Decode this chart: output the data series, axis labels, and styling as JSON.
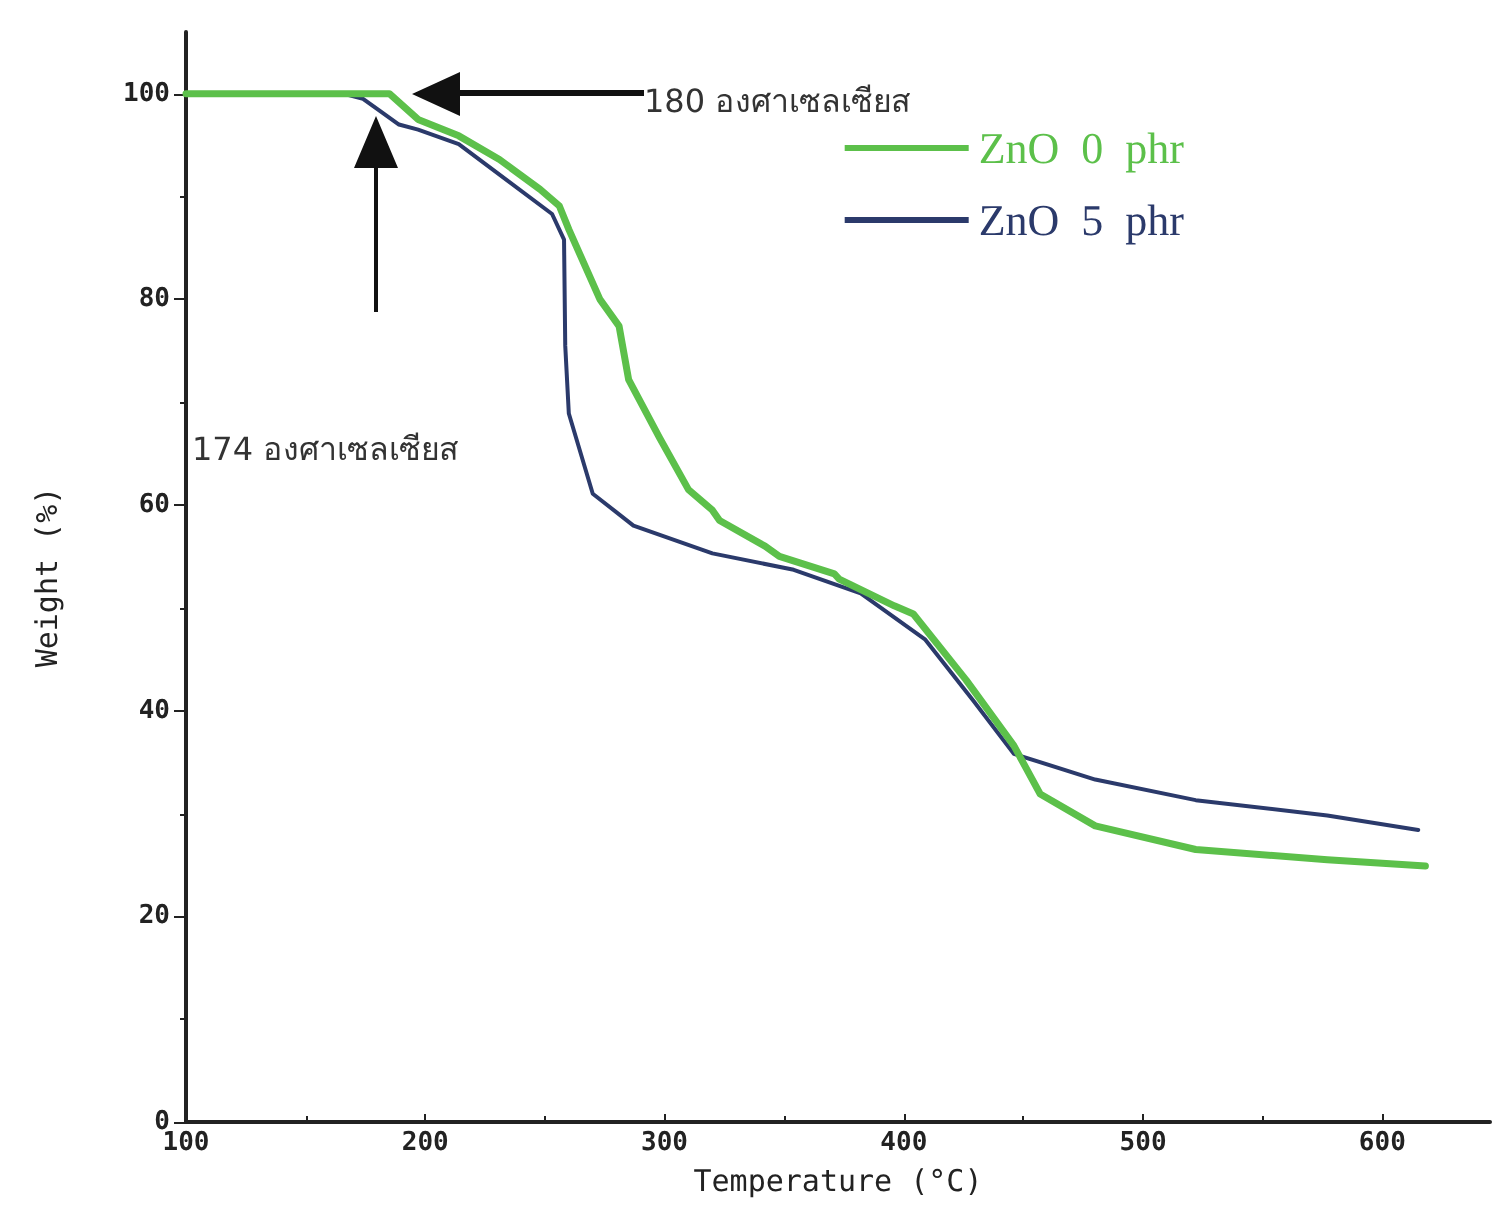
{
  "chart_data": {
    "type": "line",
    "xlabel": "Temperature (°C)",
    "ylabel": "Weight (%)",
    "xlim": [
      100,
      645
    ],
    "xticks": [
      100,
      200,
      300,
      400,
      500,
      600
    ],
    "ylim": [
      0,
      106
    ],
    "yticks": [
      0,
      20,
      40,
      60,
      80,
      100
    ],
    "grid": false,
    "legend": "top right",
    "marker": "none",
    "line_style": "solid",
    "annotations": [
      "180 องศาเซลเซียส",
      "174 องศาเซลเซียส"
    ],
    "series": [
      {
        "name": "ZnO  0  phr",
        "color": "#5cc04a",
        "x": [
          100,
          150,
          172,
          185,
          197,
          214,
          231,
          248,
          256,
          260,
          273,
          281,
          285,
          298,
          310,
          320,
          323,
          342,
          348,
          371,
          373,
          396,
          404,
          426,
          446,
          457,
          480,
          522,
          577,
          618
        ],
        "values": [
          100,
          100,
          100,
          100,
          97.5,
          95.9,
          93.6,
          90.7,
          89.1,
          86.8,
          80,
          77.4,
          72.2,
          66.5,
          61.5,
          59.5,
          58.5,
          56,
          55,
          53.3,
          52.8,
          50.2,
          49.4,
          43,
          36.6,
          31.9,
          28.8,
          26.5,
          25.5,
          24.9
        ]
      },
      {
        "name": "ZnO  5  phr",
        "color": "#2b3a6b",
        "x": [
          100,
          150,
          166,
          174,
          180,
          189,
          197,
          214,
          253,
          258,
          258.5,
          260,
          270,
          287,
          320,
          354,
          382,
          409,
          429,
          446,
          480,
          522,
          577,
          615
        ],
        "values": [
          100,
          100,
          100,
          99.5,
          98.5,
          97,
          96.5,
          95.1,
          88.3,
          85.8,
          75.5,
          68.9,
          61.1,
          58,
          55.3,
          53.7,
          51.4,
          46.9,
          41,
          35.8,
          33.3,
          31.3,
          29.8,
          28.4
        ]
      }
    ]
  }
}
